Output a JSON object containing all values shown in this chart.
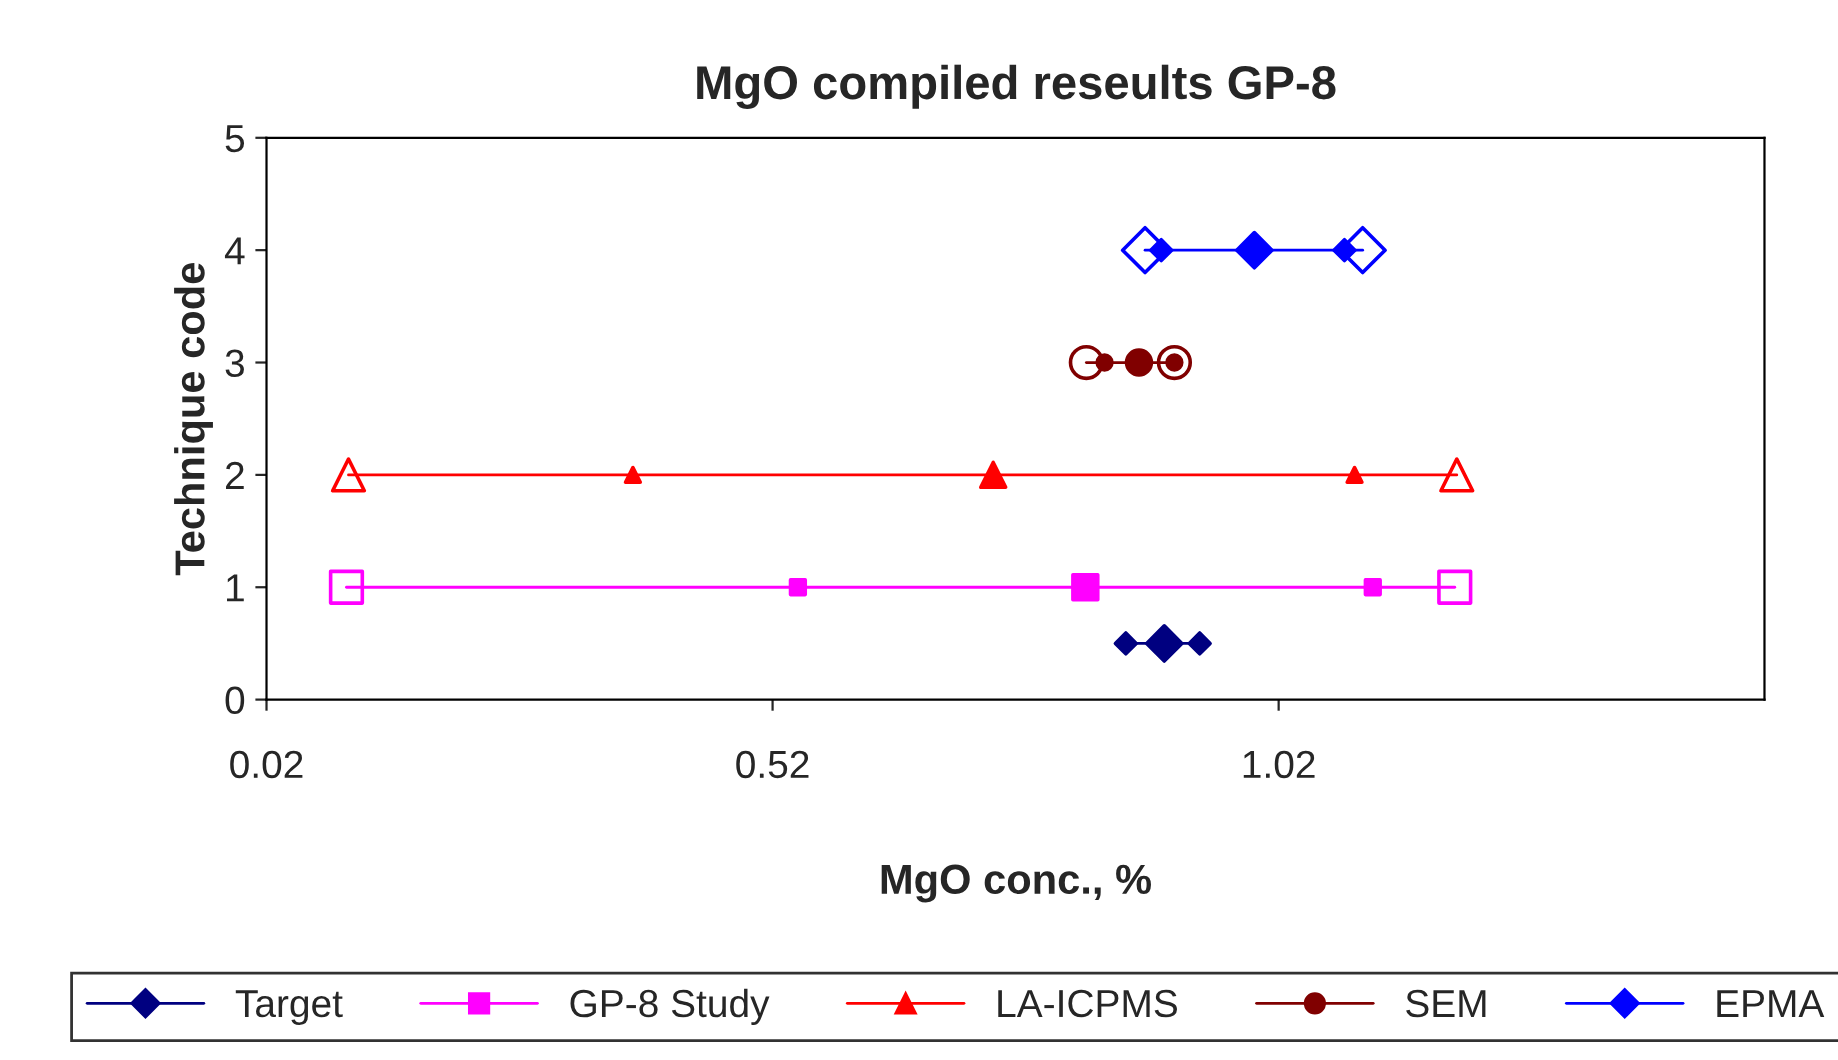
{
  "chart_data": {
    "type": "line",
    "title": "MgO compiled reseults GP-8",
    "xlabel": "MgO conc., %",
    "ylabel": "Technique code",
    "xlim": [
      0.02,
      1.5
    ],
    "xticks": [
      0.02,
      0.52,
      1.02
    ],
    "ylim": [
      0,
      5
    ],
    "yticks": [
      0,
      1,
      2,
      3,
      4,
      5
    ],
    "grid": false,
    "legend": "bottom",
    "series": [
      {
        "name": "Target",
        "color": "#000080",
        "marker": "diamond",
        "x": [
          0.869,
          0.907,
          0.942
        ],
        "values": [
          0.5,
          0.5,
          0.5
        ]
      },
      {
        "name": "GP-8 Study",
        "color": "#ff00ff",
        "marker": "square",
        "x": [
          0.099,
          0.545,
          0.829,
          1.113,
          1.194
        ],
        "values": [
          1,
          1,
          1,
          1,
          1
        ]
      },
      {
        "name": "LA-ICPMS",
        "color": "#ff0000",
        "marker": "triangle",
        "x": [
          0.101,
          0.382,
          0.738,
          1.095,
          1.196
        ],
        "values": [
          2,
          2,
          2,
          2,
          2
        ]
      },
      {
        "name": "SEM",
        "color": "#800000",
        "marker": "circle",
        "x": [
          0.83,
          0.848,
          0.882,
          0.917,
          0.917
        ],
        "values": [
          3,
          3,
          3,
          3,
          3
        ]
      },
      {
        "name": "EPMA",
        "color": "#0000ff",
        "marker": "diamond",
        "x": [
          0.888,
          0.904,
          0.996,
          1.085,
          1.103
        ],
        "values": [
          4,
          4,
          4,
          4,
          4
        ]
      }
    ]
  }
}
